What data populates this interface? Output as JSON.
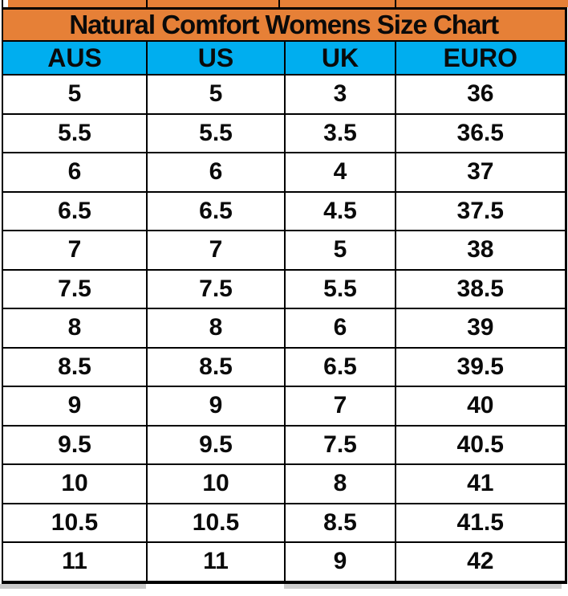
{
  "colors": {
    "title_bg": "#E68037",
    "header_bg": "#00AEEF",
    "border": "#000000",
    "text": "#0a0a0a"
  },
  "chart_data": {
    "type": "table",
    "title": "Natural Comfort Womens Size Chart",
    "columns": [
      "AUS",
      "US",
      "UK",
      "EURO"
    ],
    "rows": [
      [
        "5",
        "5",
        "3",
        "36"
      ],
      [
        "5.5",
        "5.5",
        "3.5",
        "36.5"
      ],
      [
        "6",
        "6",
        "4",
        "37"
      ],
      [
        "6.5",
        "6.5",
        "4.5",
        "37.5"
      ],
      [
        "7",
        "7",
        "5",
        "38"
      ],
      [
        "7.5",
        "7.5",
        "5.5",
        "38.5"
      ],
      [
        "8",
        "8",
        "6",
        "39"
      ],
      [
        "8.5",
        "8.5",
        "6.5",
        "39.5"
      ],
      [
        "9",
        "9",
        "7",
        "40"
      ],
      [
        "9.5",
        "9.5",
        "7.5",
        "40.5"
      ],
      [
        "10",
        "10",
        "8",
        "41"
      ],
      [
        "10.5",
        "10.5",
        "8.5",
        "41.5"
      ],
      [
        "11",
        "11",
        "9",
        "42"
      ]
    ]
  }
}
